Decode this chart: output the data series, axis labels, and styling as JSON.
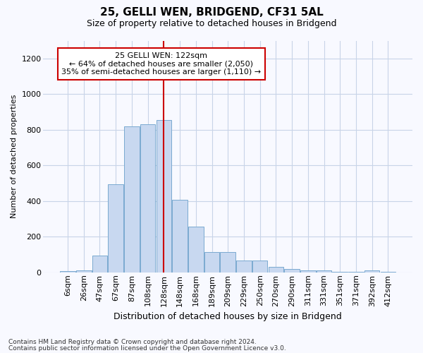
{
  "title": "25, GELLI WEN, BRIDGEND, CF31 5AL",
  "subtitle": "Size of property relative to detached houses in Bridgend",
  "xlabel": "Distribution of detached houses by size in Bridgend",
  "ylabel": "Number of detached properties",
  "footnote1": "Contains HM Land Registry data © Crown copyright and database right 2024.",
  "footnote2": "Contains public sector information licensed under the Open Government Licence v3.0.",
  "bar_color": "#c8d8f0",
  "bar_edge_color": "#7aaad0",
  "categories": [
    "6sqm",
    "26sqm",
    "47sqm",
    "67sqm",
    "87sqm",
    "108sqm",
    "128sqm",
    "148sqm",
    "168sqm",
    "189sqm",
    "209sqm",
    "229sqm",
    "250sqm",
    "270sqm",
    "290sqm",
    "311sqm",
    "331sqm",
    "351sqm",
    "371sqm",
    "392sqm",
    "412sqm"
  ],
  "values": [
    8,
    10,
    95,
    495,
    820,
    830,
    855,
    405,
    255,
    115,
    115,
    65,
    65,
    30,
    20,
    12,
    12,
    3,
    3,
    10,
    3
  ],
  "ylim": [
    0,
    1300
  ],
  "yticks": [
    0,
    200,
    400,
    600,
    800,
    1000,
    1200
  ],
  "annotation_line": "25 GELLI WEN: 122sqm",
  "annotation_line2": "← 64% of detached houses are smaller (2,050)",
  "annotation_line3": "35% of semi-detached houses are larger (1,110) →",
  "annotation_box_color": "#ffffff",
  "annotation_border_color": "#cc0000",
  "red_line_color": "#cc0000",
  "grid_color": "#c8d4e8",
  "background_color": "#f8f9ff",
  "title_fontsize": 11,
  "subtitle_fontsize": 9,
  "ylabel_fontsize": 8,
  "xlabel_fontsize": 9,
  "tick_fontsize": 8,
  "footnote_fontsize": 6.5
}
